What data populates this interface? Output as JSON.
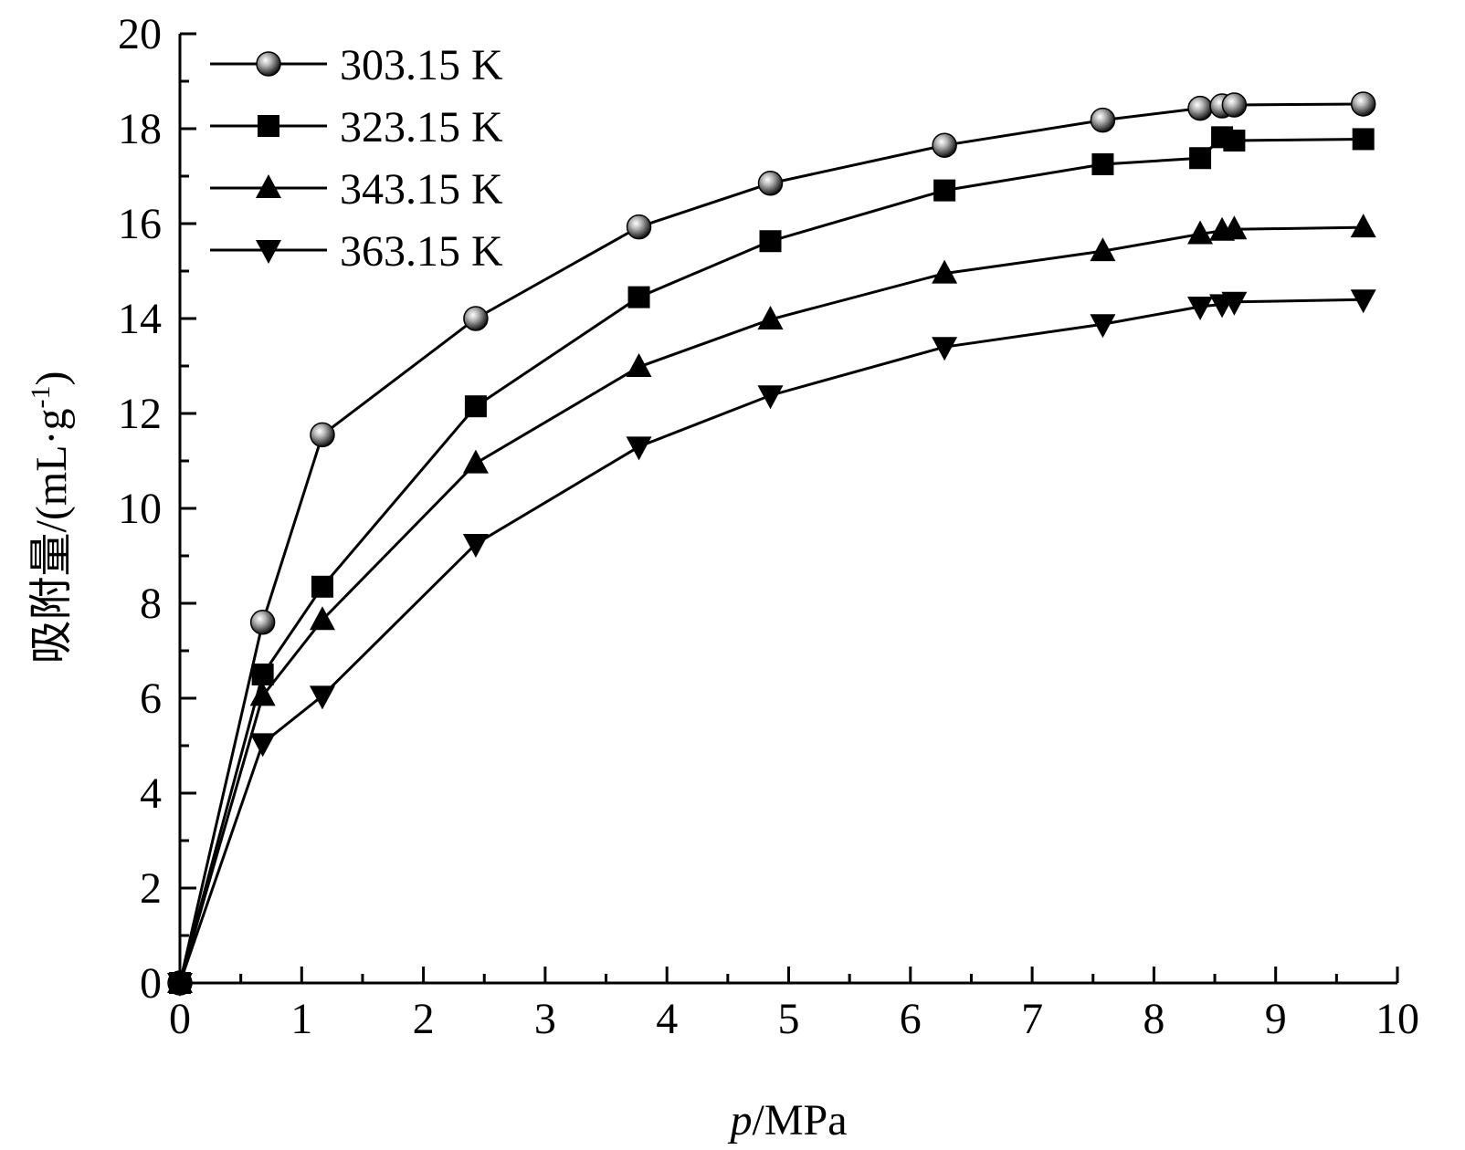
{
  "chart_data": {
    "type": "line",
    "xlabel": "p/MPa",
    "xlabel_italic_part": "p",
    "xlabel_rest": "/MPa",
    "ylabel": "吸附量/(mL·g-1)",
    "ylabel_main": "吸附量/(mL·g",
    "ylabel_sup": "-1",
    "ylabel_close": ")",
    "xlim": [
      0,
      10
    ],
    "ylim": [
      0,
      20
    ],
    "xticks": [
      0,
      1,
      2,
      3,
      4,
      5,
      6,
      7,
      8,
      9,
      10
    ],
    "yticks": [
      0,
      2,
      4,
      6,
      8,
      10,
      12,
      14,
      16,
      18,
      20
    ],
    "grid": false,
    "legend_position": "top-left",
    "series": [
      {
        "name": "303.15 K",
        "marker": "sphere",
        "x": [
          0,
          0.68,
          1.17,
          2.43,
          3.77,
          4.85,
          6.28,
          7.58,
          8.38,
          8.56,
          8.66,
          9.72
        ],
        "y": [
          0,
          7.6,
          11.55,
          14.0,
          15.93,
          16.85,
          17.65,
          18.18,
          18.43,
          18.48,
          18.5,
          18.52
        ]
      },
      {
        "name": "323.15 K",
        "marker": "square",
        "x": [
          0,
          0.68,
          1.17,
          2.43,
          3.77,
          4.85,
          6.28,
          7.58,
          8.38,
          8.56,
          8.66,
          9.72
        ],
        "y": [
          0,
          6.5,
          8.35,
          12.15,
          14.45,
          15.63,
          16.7,
          17.25,
          17.38,
          17.82,
          17.75,
          17.78
        ]
      },
      {
        "name": "343.15 K",
        "marker": "triangle-up",
        "x": [
          0,
          0.68,
          1.17,
          2.43,
          3.77,
          4.85,
          6.28,
          7.58,
          8.38,
          8.56,
          8.66,
          9.72
        ],
        "y": [
          0,
          6.05,
          7.65,
          10.95,
          12.98,
          13.98,
          14.95,
          15.42,
          15.78,
          15.85,
          15.88,
          15.92
        ]
      },
      {
        "name": "363.15 K",
        "marker": "triangle-down",
        "x": [
          0,
          0.68,
          1.17,
          2.43,
          3.77,
          4.85,
          6.28,
          7.58,
          8.38,
          8.56,
          8.66,
          9.72
        ],
        "y": [
          0,
          5.05,
          6.05,
          9.25,
          11.3,
          12.38,
          13.4,
          13.88,
          14.25,
          14.3,
          14.35,
          14.4
        ]
      }
    ]
  }
}
